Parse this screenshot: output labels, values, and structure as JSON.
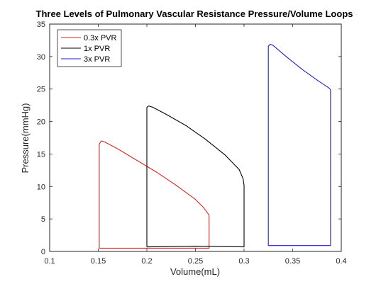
{
  "chart_data": {
    "type": "line",
    "title": "Three Levels of Pulmonary Vascular Resistance Pressure/Volume Loops",
    "xlabel": "Volume(mL)",
    "ylabel": "Pressure(mmHg)",
    "xlim": [
      0.1,
      0.4
    ],
    "ylim": [
      0,
      35
    ],
    "xticks": [
      0.1,
      0.15,
      0.2,
      0.25,
      0.3,
      0.35,
      0.4
    ],
    "xtick_labels": [
      "0.1",
      "0.15",
      "0.2",
      "0.25",
      "0.3",
      "0.35",
      "0.4"
    ],
    "yticks": [
      0,
      5,
      10,
      15,
      20,
      25,
      30,
      35
    ],
    "ytick_labels": [
      "0",
      "5",
      "10",
      "15",
      "20",
      "25",
      "30",
      "35"
    ],
    "grid": false,
    "legend_position": "top-left",
    "series": [
      {
        "name": "0.3x PVR",
        "color": "#d62728",
        "points": [
          [
            0.151,
            0.5
          ],
          [
            0.151,
            16.5
          ],
          [
            0.153,
            17.0
          ],
          [
            0.156,
            16.9
          ],
          [
            0.17,
            15.8
          ],
          [
            0.19,
            14.0
          ],
          [
            0.21,
            12.2
          ],
          [
            0.23,
            10.2
          ],
          [
            0.25,
            8.0
          ],
          [
            0.258,
            6.8
          ],
          [
            0.263,
            5.8
          ],
          [
            0.264,
            5.5
          ],
          [
            0.264,
            0.5
          ],
          [
            0.151,
            0.5
          ]
        ]
      },
      {
        "name": "1x PVR",
        "color": "#000000",
        "points": [
          [
            0.2,
            0.7
          ],
          [
            0.2,
            22.2
          ],
          [
            0.202,
            22.4
          ],
          [
            0.206,
            22.2
          ],
          [
            0.22,
            21.1
          ],
          [
            0.24,
            19.4
          ],
          [
            0.26,
            17.3
          ],
          [
            0.28,
            14.9
          ],
          [
            0.295,
            12.6
          ],
          [
            0.299,
            11.2
          ],
          [
            0.3,
            10.2
          ],
          [
            0.3,
            0.7
          ],
          [
            0.25,
            0.8
          ],
          [
            0.2,
            0.7
          ]
        ]
      },
      {
        "name": "3x PVR",
        "color": "#1f1fc8",
        "points": [
          [
            0.325,
            0.9
          ],
          [
            0.325,
            31.6
          ],
          [
            0.327,
            31.9
          ],
          [
            0.33,
            31.7
          ],
          [
            0.345,
            29.8
          ],
          [
            0.36,
            28.0
          ],
          [
            0.375,
            26.4
          ],
          [
            0.387,
            25.2
          ],
          [
            0.389,
            24.9
          ],
          [
            0.389,
            0.9
          ],
          [
            0.325,
            0.9
          ]
        ]
      }
    ]
  }
}
